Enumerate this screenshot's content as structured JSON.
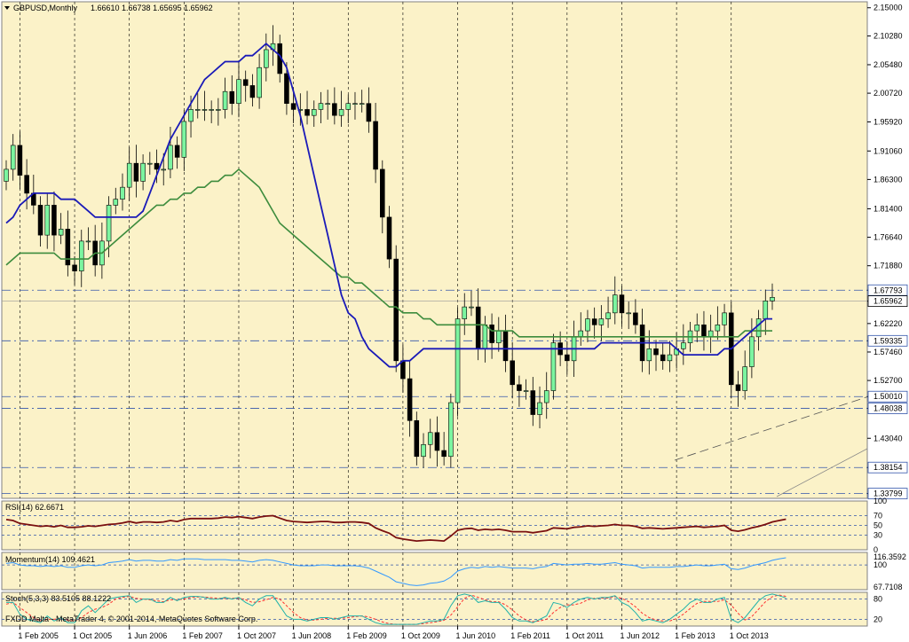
{
  "header": {
    "symbol": "GBPUSD,Monthly",
    "ohlc": "1.66610 1.66738 1.65695 1.65962"
  },
  "copyright": "FXDD Malta - MetaTrader 4, © 2001-2014, MetaQuotes Software Corp.",
  "colors": {
    "background": "#fbf2c8",
    "bull_candle": "#7cf5a0",
    "bear_candle": "#000000",
    "ma_fast": "#1a1ab8",
    "ma_slow": "#3d8c3d",
    "rsi_line": "#7a1010",
    "momentum_line": "#3399ff",
    "stoch_main": "#20b2aa",
    "stoch_signal": "#ff3030",
    "price_label_bg": "#ffffff"
  },
  "chart_data": {
    "type": "candlestick",
    "main": {
      "y_ticks": [
        "2.15000",
        "2.10280",
        "2.05480",
        "2.00720",
        "1.95920",
        "1.91060",
        "1.86300",
        "1.81400",
        "1.76640",
        "1.71880",
        "1.67793",
        "1.65962",
        "1.62220",
        "1.59335",
        "1.57460",
        "1.52700",
        "1.50010",
        "1.48038",
        "1.43040",
        "1.38154",
        "1.33799"
      ],
      "ylim": [
        1.33,
        2.16
      ],
      "hlines": [
        1.67793,
        1.59335,
        1.5001,
        1.48038,
        1.38154,
        1.33799
      ],
      "current_price": 1.65962,
      "x_ticks": [
        "1 Feb 2005",
        "1 Oct 2005",
        "1 Jun 2006",
        "1 Feb 2007",
        "1 Oct 2007",
        "1 Jun 2008",
        "1 Feb 2009",
        "1 Oct 2009",
        "1 Jun 2010",
        "1 Feb 2011",
        "1 Oct 2011",
        "1 Jun 2012",
        "1 Feb 2013",
        "1 Oct 2013"
      ],
      "months": 113,
      "close": [
        1.88,
        1.92,
        1.87,
        1.84,
        1.82,
        1.77,
        1.82,
        1.77,
        1.78,
        1.72,
        1.71,
        1.76,
        1.76,
        1.72,
        1.76,
        1.82,
        1.83,
        1.85,
        1.89,
        1.86,
        1.89,
        1.89,
        1.88,
        1.88,
        1.92,
        1.9,
        1.96,
        1.98,
        1.98,
        1.98,
        1.98,
        1.98,
        2.01,
        1.99,
        2.03,
        2.02,
        2.0,
        2.05,
        2.08,
        2.09,
        2.04,
        1.99,
        1.98,
        1.98,
        1.97,
        1.98,
        1.99,
        1.99,
        1.97,
        1.98,
        1.99,
        1.99,
        1.99,
        1.96,
        1.88,
        1.8,
        1.73,
        1.56,
        1.53,
        1.46,
        1.4,
        1.42,
        1.44,
        1.41,
        1.4,
        1.49,
        1.63,
        1.65,
        1.65,
        1.58,
        1.62,
        1.59,
        1.61,
        1.56,
        1.52,
        1.51,
        1.51,
        1.47,
        1.49,
        1.51,
        1.59,
        1.57,
        1.56,
        1.6,
        1.61,
        1.63,
        1.62,
        1.63,
        1.64,
        1.67,
        1.64,
        1.64,
        1.62,
        1.56,
        1.58,
        1.57,
        1.56,
        1.57,
        1.58,
        1.59,
        1.61,
        1.62,
        1.6,
        1.61,
        1.62,
        1.64,
        1.52,
        1.51,
        1.55,
        1.6,
        1.63,
        1.66,
        1.666,
        1.67,
        1.66
      ],
      "ma_fast": [
        1.79,
        1.8,
        1.82,
        1.83,
        1.84,
        1.84,
        1.84,
        1.84,
        1.83,
        1.83,
        1.83,
        1.82,
        1.81,
        1.8,
        1.8,
        1.8,
        1.8,
        1.8,
        1.8,
        1.8,
        1.81,
        1.84,
        1.87,
        1.9,
        1.93,
        1.95,
        1.97,
        1.99,
        2.01,
        2.03,
        2.04,
        2.05,
        2.06,
        2.06,
        2.06,
        2.07,
        2.07,
        2.08,
        2.09,
        2.08,
        2.07,
        2.05,
        2.01,
        1.97,
        1.92,
        1.87,
        1.82,
        1.77,
        1.72,
        1.67,
        1.64,
        1.63,
        1.6,
        1.58,
        1.57,
        1.56,
        1.55,
        1.55,
        1.56,
        1.56,
        1.57,
        1.58,
        1.58,
        1.58,
        1.58,
        1.58,
        1.58,
        1.58,
        1.58,
        1.58,
        1.58,
        1.58,
        1.58,
        1.58,
        1.58,
        1.58,
        1.58,
        1.58,
        1.58,
        1.58,
        1.58,
        1.58,
        1.58,
        1.58,
        1.58,
        1.58,
        1.58,
        1.59,
        1.59,
        1.59,
        1.59,
        1.59,
        1.59,
        1.59,
        1.59,
        1.59,
        1.59,
        1.59,
        1.58,
        1.57,
        1.57,
        1.57,
        1.57,
        1.57,
        1.57,
        1.58,
        1.58,
        1.59,
        1.6,
        1.61,
        1.62,
        1.63,
        1.63
      ],
      "ma_slow": [
        1.72,
        1.73,
        1.74,
        1.74,
        1.74,
        1.74,
        1.74,
        1.74,
        1.73,
        1.73,
        1.73,
        1.73,
        1.73,
        1.74,
        1.74,
        1.75,
        1.76,
        1.77,
        1.78,
        1.79,
        1.8,
        1.81,
        1.82,
        1.82,
        1.83,
        1.83,
        1.84,
        1.84,
        1.85,
        1.85,
        1.86,
        1.86,
        1.87,
        1.87,
        1.88,
        1.87,
        1.86,
        1.85,
        1.83,
        1.81,
        1.79,
        1.78,
        1.77,
        1.76,
        1.75,
        1.74,
        1.73,
        1.72,
        1.71,
        1.7,
        1.7,
        1.69,
        1.69,
        1.68,
        1.67,
        1.66,
        1.65,
        1.65,
        1.64,
        1.64,
        1.64,
        1.63,
        1.63,
        1.62,
        1.62,
        1.62,
        1.62,
        1.62,
        1.62,
        1.62,
        1.62,
        1.61,
        1.61,
        1.61,
        1.61,
        1.6,
        1.6,
        1.6,
        1.6,
        1.6,
        1.6,
        1.6,
        1.6,
        1.6,
        1.6,
        1.6,
        1.6,
        1.6,
        1.6,
        1.6,
        1.6,
        1.6,
        1.6,
        1.6,
        1.6,
        1.6,
        1.6,
        1.6,
        1.6,
        1.6,
        1.6,
        1.6,
        1.6,
        1.6,
        1.6,
        1.6,
        1.6,
        1.6,
        1.61,
        1.61,
        1.61,
        1.61,
        1.61
      ]
    },
    "rsi": {
      "label": "RSI(14) 62.6671",
      "y_ticks": [
        "100",
        "70",
        "50",
        "30",
        "0"
      ],
      "levels": [
        70,
        50,
        30
      ],
      "values": [
        62,
        60,
        54,
        52,
        50,
        48,
        49,
        47,
        50,
        46,
        46,
        47,
        49,
        48,
        50,
        52,
        53,
        55,
        58,
        55,
        57,
        57,
        56,
        57,
        60,
        58,
        62,
        64,
        64,
        64,
        64,
        65,
        67,
        66,
        68,
        66,
        64,
        67,
        69,
        70,
        65,
        60,
        58,
        57,
        56,
        57,
        58,
        58,
        56,
        56,
        57,
        57,
        56,
        54,
        45,
        39,
        34,
        25,
        22,
        20,
        18,
        19,
        20,
        19,
        18,
        28,
        40,
        43,
        44,
        40,
        42,
        41,
        42,
        40,
        37,
        37,
        37,
        35,
        37,
        39,
        45,
        44,
        43,
        46,
        47,
        49,
        48,
        49,
        50,
        52,
        50,
        50,
        48,
        44,
        45,
        44,
        43,
        44,
        45,
        46,
        47,
        48,
        46,
        47,
        48,
        50,
        40,
        38,
        41,
        45,
        48,
        52,
        57,
        60,
        62.6671
      ]
    },
    "momentum": {
      "label": "Momentum(14) 109.4621",
      "y_ticks": [
        "116.3592",
        "100",
        "67.7108"
      ],
      "levels": [
        100
      ],
      "values": [
        102,
        103,
        100,
        99,
        99,
        98,
        99,
        98,
        99,
        97,
        97,
        99,
        100,
        99,
        100,
        103,
        104,
        105,
        107,
        105,
        106,
        106,
        105,
        105,
        107,
        106,
        108,
        108,
        108,
        107,
        107,
        107,
        107,
        106,
        106,
        105,
        104,
        106,
        107,
        106,
        104,
        102,
        100,
        99,
        99,
        99,
        100,
        100,
        99,
        99,
        99,
        99,
        98,
        96,
        92,
        88,
        84,
        78,
        76,
        74,
        73,
        74,
        76,
        77,
        79,
        84,
        92,
        95,
        97,
        96,
        98,
        97,
        98,
        97,
        96,
        96,
        96,
        95,
        97,
        98,
        102,
        101,
        100,
        101,
        101,
        102,
        101,
        101,
        102,
        103,
        101,
        100,
        99,
        96,
        97,
        97,
        97,
        97,
        98,
        98,
        99,
        100,
        99,
        99,
        100,
        101,
        95,
        94,
        96,
        99,
        101,
        103,
        106,
        108,
        109.4621
      ]
    },
    "stoch": {
      "label": "Stoch(5,3,3) 83.5105 88.1222",
      "y_ticks": [
        "80",
        "20"
      ],
      "levels": [
        80,
        20
      ],
      "main": [
        70,
        70,
        35,
        20,
        15,
        10,
        30,
        15,
        25,
        10,
        10,
        45,
        60,
        40,
        60,
        80,
        85,
        88,
        90,
        70,
        80,
        80,
        70,
        70,
        85,
        75,
        85,
        88,
        88,
        85,
        80,
        80,
        85,
        80,
        85,
        70,
        60,
        80,
        90,
        90,
        60,
        30,
        20,
        20,
        15,
        20,
        25,
        25,
        20,
        25,
        30,
        30,
        30,
        20,
        10,
        5,
        5,
        5,
        5,
        5,
        5,
        10,
        15,
        15,
        20,
        60,
        90,
        95,
        90,
        70,
        75,
        70,
        70,
        50,
        25,
        15,
        15,
        10,
        20,
        30,
        70,
        65,
        55,
        70,
        80,
        85,
        80,
        85,
        85,
        90,
        70,
        60,
        40,
        15,
        20,
        15,
        10,
        20,
        35,
        50,
        70,
        80,
        70,
        70,
        80,
        85,
        20,
        10,
        25,
        50,
        75,
        90,
        95,
        90,
        83.5105
      ],
      "signal": [
        65,
        70,
        55,
        40,
        25,
        15,
        20,
        20,
        22,
        18,
        15,
        25,
        40,
        50,
        55,
        65,
        80,
        85,
        88,
        82,
        80,
        78,
        75,
        72,
        78,
        78,
        80,
        85,
        86,
        86,
        84,
        82,
        82,
        82,
        83,
        78,
        70,
        72,
        78,
        85,
        80,
        60,
        40,
        25,
        18,
        18,
        20,
        23,
        23,
        23,
        25,
        28,
        30,
        27,
        20,
        12,
        7,
        5,
        5,
        5,
        5,
        7,
        10,
        13,
        17,
        32,
        57,
        82,
        92,
        85,
        78,
        72,
        72,
        63,
        48,
        30,
        18,
        13,
        15,
        20,
        40,
        55,
        63,
        63,
        68,
        78,
        82,
        83,
        83,
        87,
        82,
        72,
        57,
        38,
        25,
        18,
        15,
        15,
        22,
        35,
        52,
        67,
        73,
        73,
        73,
        78,
        62,
        38,
        18,
        28,
        50,
        72,
        87,
        92,
        88.1222
      ]
    }
  }
}
